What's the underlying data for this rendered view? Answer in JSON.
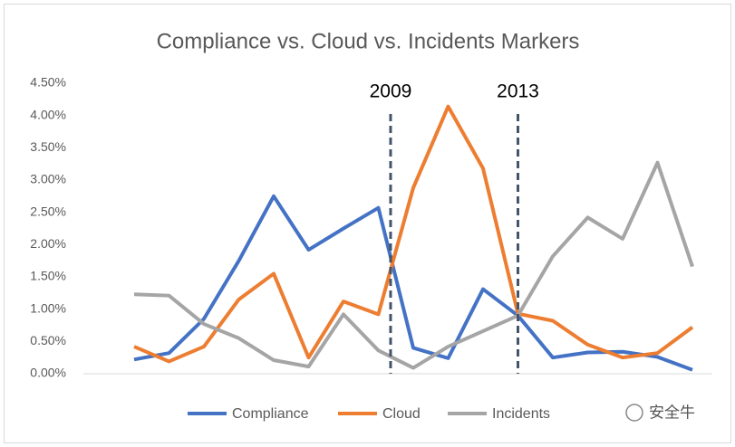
{
  "chart_data": {
    "type": "line",
    "title": "Compliance vs. Cloud vs. Incidents Markers",
    "categories": [
      null,
      null,
      null,
      null,
      null,
      null,
      null,
      null,
      null,
      null,
      null,
      null,
      null,
      null,
      null,
      null,
      null
    ],
    "series": [
      {
        "name": "Compliance",
        "color": "#4472c4",
        "values": [
          0.22,
          0.32,
          0.85,
          1.75,
          2.75,
          1.92,
          2.25,
          2.57,
          0.4,
          0.24,
          1.31,
          0.9,
          0.25,
          0.33,
          0.34,
          0.26,
          0.06
        ]
      },
      {
        "name": "Cloud",
        "color": "#ed7d31",
        "values": [
          0.42,
          0.19,
          0.42,
          1.15,
          1.55,
          0.25,
          1.12,
          0.92,
          2.88,
          4.14,
          3.18,
          0.93,
          0.82,
          0.45,
          0.25,
          0.32,
          0.72
        ]
      },
      {
        "name": "Incidents",
        "color": "#a5a5a5",
        "values": [
          1.23,
          1.21,
          0.77,
          0.55,
          0.21,
          0.11,
          0.92,
          0.36,
          0.09,
          0.42,
          0.66,
          0.9,
          1.82,
          2.42,
          2.09,
          3.27,
          1.66
        ]
      }
    ],
    "markers": [
      {
        "label": "2009",
        "x": 7.35,
        "color": "#44546a"
      },
      {
        "label": "2013",
        "x": 11,
        "color": "#44546a"
      }
    ],
    "ylim": [
      0,
      4.5
    ],
    "yticks": [
      {
        "value": 0,
        "label": "0.00%"
      },
      {
        "value": 0.5,
        "label": "0.50%"
      },
      {
        "value": 1,
        "label": "1.00%"
      },
      {
        "value": 1.5,
        "label": "1.50%"
      },
      {
        "value": 2,
        "label": "2.00%"
      },
      {
        "value": 2.5,
        "label": "2.50%"
      },
      {
        "value": 3,
        "label": "3.00%"
      },
      {
        "value": 3.5,
        "label": "3.50%"
      },
      {
        "value": 4,
        "label": "4.00%"
      },
      {
        "value": 4.5,
        "label": "4.50%"
      }
    ],
    "grid": false,
    "legend": "bottom",
    "watermark": "安全牛"
  }
}
